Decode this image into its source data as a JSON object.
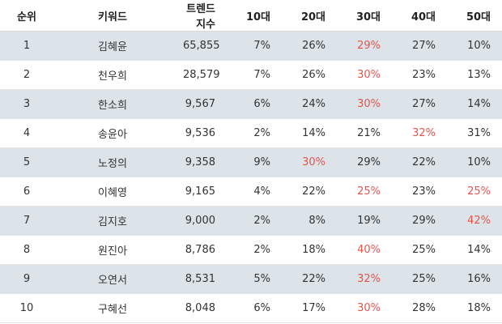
{
  "table": {
    "headers": {
      "rank": "순위",
      "keyword": "키워드",
      "trend": "트렌드지수",
      "age10": "10대",
      "age20": "20대",
      "age30": "30대",
      "age40": "40대",
      "age50": "50대"
    },
    "highlight_color": "#e8524a",
    "stripe_color": "#dce4ea",
    "rows": [
      {
        "rank": "1",
        "keyword": "김혜윤",
        "trend": "65,855",
        "age10": "7%",
        "age20": "26%",
        "age30": "29%",
        "age40": "27%",
        "age50": "10%",
        "highlight": "age30"
      },
      {
        "rank": "2",
        "keyword": "천우희",
        "trend": "28,579",
        "age10": "7%",
        "age20": "26%",
        "age30": "30%",
        "age40": "23%",
        "age50": "13%",
        "highlight": "age30"
      },
      {
        "rank": "3",
        "keyword": "한소희",
        "trend": "9,567",
        "age10": "6%",
        "age20": "24%",
        "age30": "30%",
        "age40": "27%",
        "age50": "14%",
        "highlight": "age30"
      },
      {
        "rank": "4",
        "keyword": "송윤아",
        "trend": "9,536",
        "age10": "2%",
        "age20": "14%",
        "age30": "21%",
        "age40": "32%",
        "age50": "31%",
        "highlight": "age40"
      },
      {
        "rank": "5",
        "keyword": "노정의",
        "trend": "9,358",
        "age10": "9%",
        "age20": "30%",
        "age30": "29%",
        "age40": "22%",
        "age50": "10%",
        "highlight": "age20"
      },
      {
        "rank": "6",
        "keyword": "이혜영",
        "trend": "9,165",
        "age10": "4%",
        "age20": "22%",
        "age30": "25%",
        "age40": "23%",
        "age50": "25%",
        "highlight": "age30,age50"
      },
      {
        "rank": "7",
        "keyword": "김지호",
        "trend": "9,000",
        "age10": "2%",
        "age20": "8%",
        "age30": "19%",
        "age40": "29%",
        "age50": "42%",
        "highlight": "age50"
      },
      {
        "rank": "8",
        "keyword": "원진아",
        "trend": "8,786",
        "age10": "2%",
        "age20": "18%",
        "age30": "40%",
        "age40": "25%",
        "age50": "14%",
        "highlight": "age30"
      },
      {
        "rank": "9",
        "keyword": "오연서",
        "trend": "8,531",
        "age10": "5%",
        "age20": "22%",
        "age30": "32%",
        "age40": "25%",
        "age50": "16%",
        "highlight": "age30"
      },
      {
        "rank": "10",
        "keyword": "구혜선",
        "trend": "8,048",
        "age10": "6%",
        "age20": "17%",
        "age30": "30%",
        "age40": "28%",
        "age50": "18%",
        "highlight": "age30"
      }
    ]
  }
}
